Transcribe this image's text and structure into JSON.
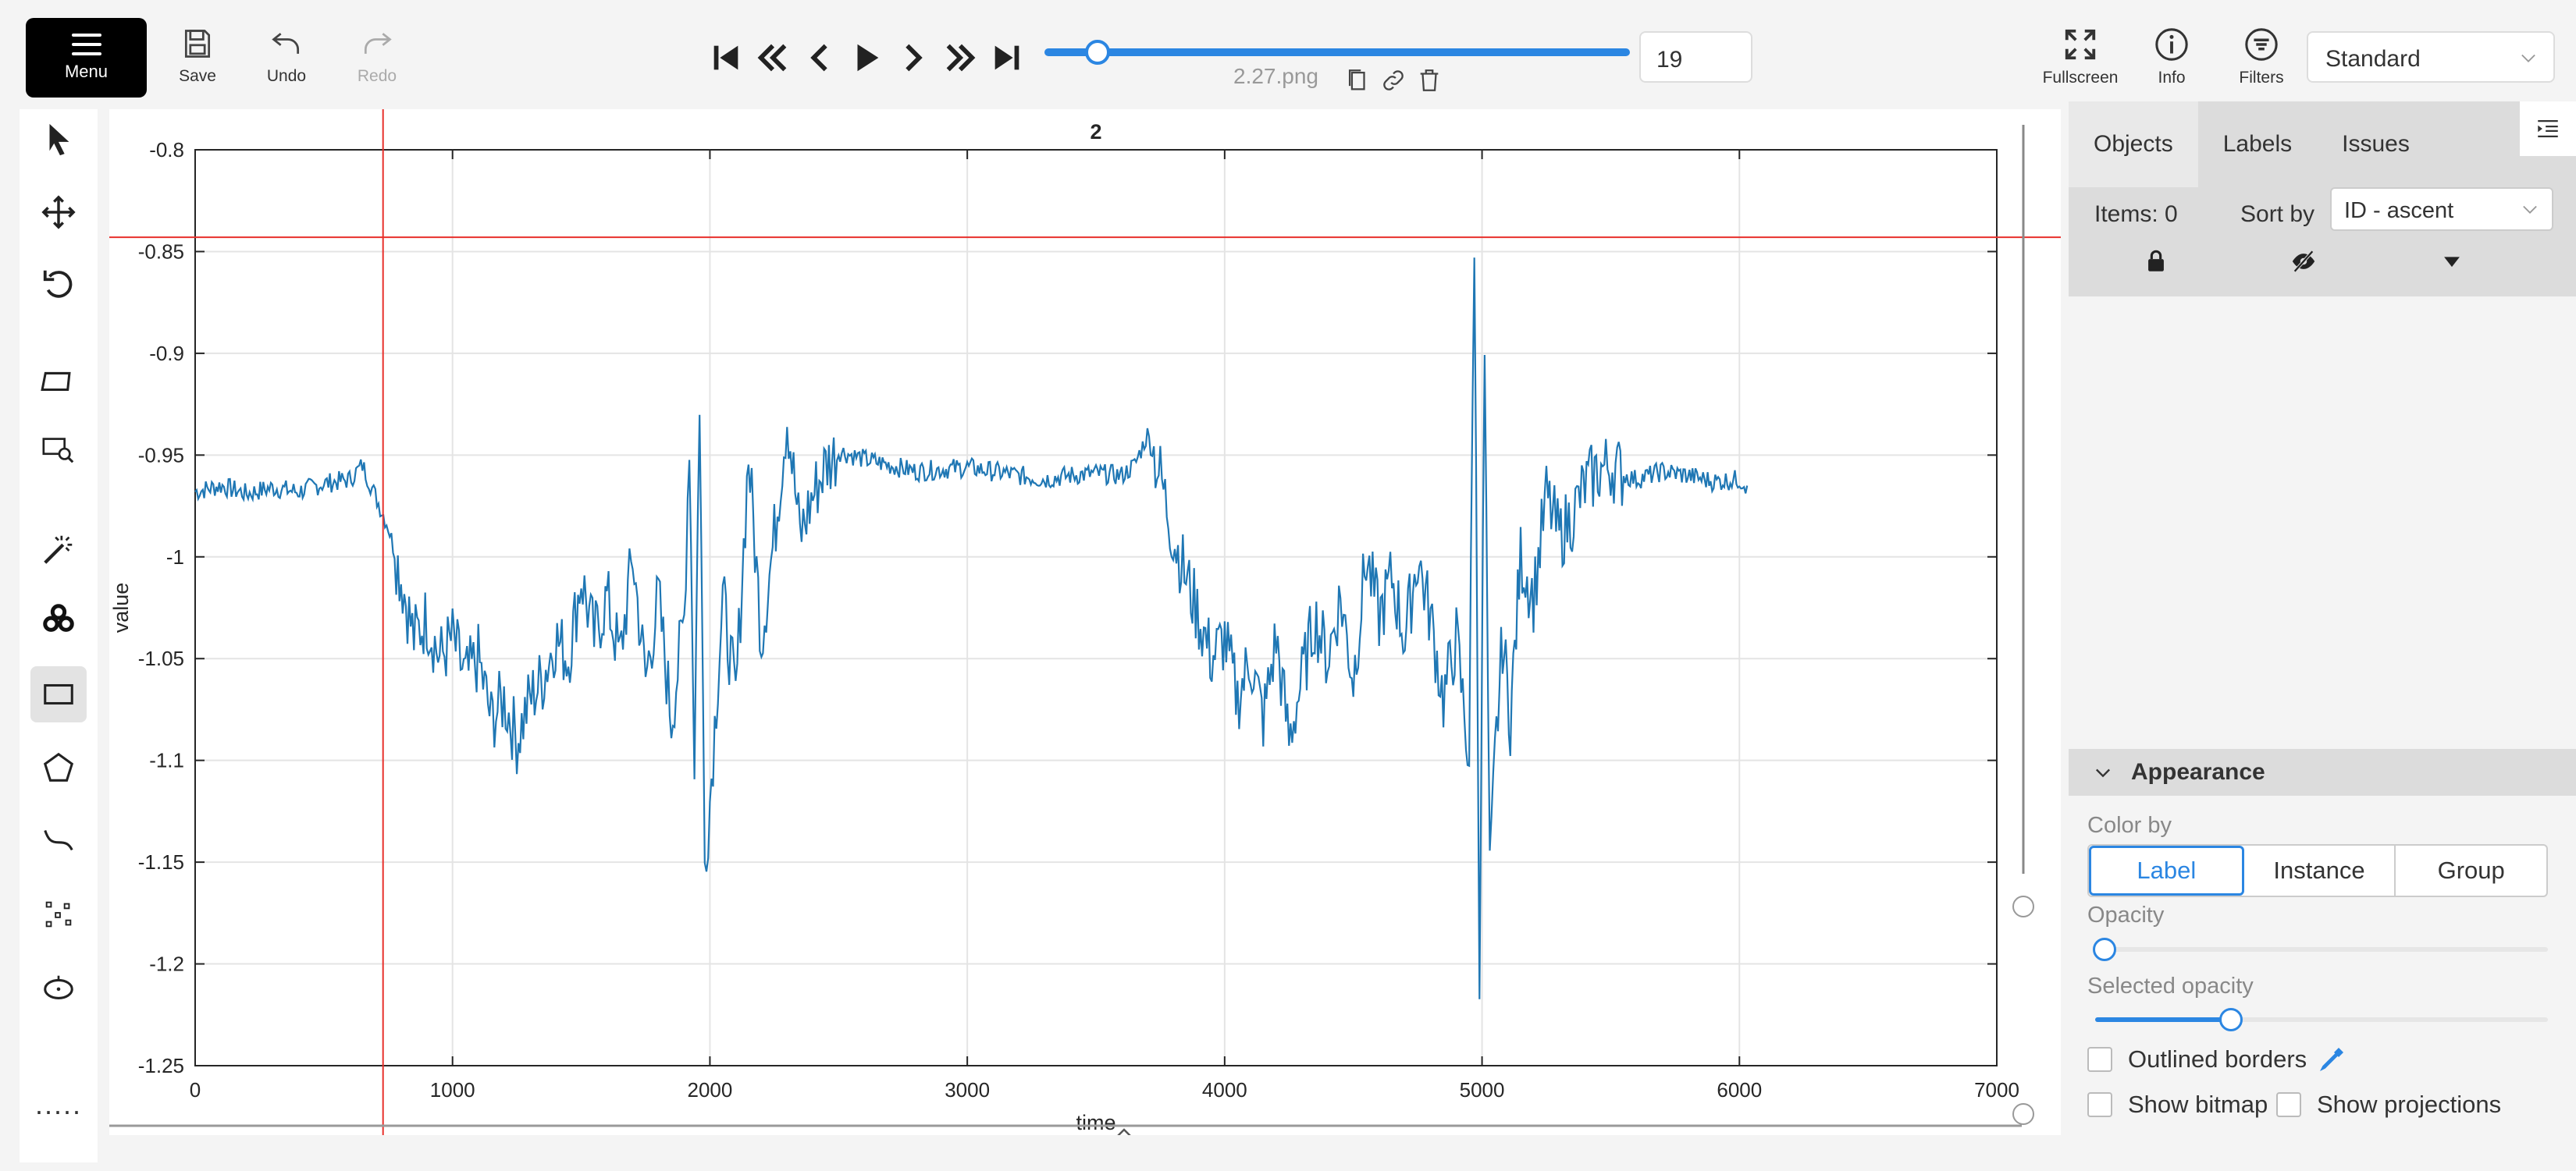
{
  "topbar": {
    "menu_label": "Menu",
    "save_label": "Save",
    "undo_label": "Undo",
    "redo_label": "Redo",
    "player_icons": [
      "first-frame-icon",
      "fast-backward-icon",
      "previous-frame-icon",
      "play-icon",
      "next-frame-icon",
      "fast-forward-icon",
      "last-frame-icon"
    ],
    "filename": "2.27.png",
    "frame_number": "19",
    "frame_progress": 0.09,
    "fullscreen_label": "Fullscreen",
    "info_label": "Info",
    "filters_label": "Filters",
    "workspace": "Standard"
  },
  "left_tools": [
    "cursor-icon",
    "move-icon",
    "rotate-icon",
    "fit-image-icon",
    "zoom-region-icon",
    "magic-wand-icon",
    "openvino-icon",
    "rectangle-icon",
    "polygon-icon",
    "polyline-icon",
    "points-icon",
    "ellipse-icon",
    "more-tools-icon"
  ],
  "active_tool": "rectangle-icon",
  "sidebar": {
    "tabs": [
      "Objects",
      "Labels",
      "Issues"
    ],
    "active_tab": "Objects",
    "items_count": "Items: 0",
    "sort_by_label": "Sort by",
    "sort_value": "ID - ascent",
    "appearance_title": "Appearance",
    "color_by_label": "Color by",
    "color_by_options": [
      "Label",
      "Instance",
      "Group"
    ],
    "color_by_selected": "Label",
    "opacity_label": "Opacity",
    "opacity_value": 0.02,
    "selected_opacity_label": "Selected opacity",
    "selected_opacity_value": 0.3,
    "outlined_borders_label": "Outlined borders",
    "show_bitmap_label": "Show bitmap",
    "show_projections_label": "Show projections"
  },
  "chart_data": {
    "type": "line",
    "title": "2",
    "xlabel": "time",
    "ylabel": "value",
    "xlim": [
      0,
      7000
    ],
    "ylim": [
      -1.25,
      -0.8
    ],
    "xticks": [
      "0",
      "1000",
      "2000",
      "3000",
      "4000",
      "5000",
      "6000",
      "7000"
    ],
    "yticks": [
      "-0.8",
      "-0.85",
      "-0.9",
      "-0.95",
      "-1",
      "-1.05",
      "-1.1",
      "-1.15",
      "-1.2",
      "-1.25"
    ],
    "grid": true,
    "color": "#1f77b4",
    "crosshair": {
      "x": 730,
      "y": -0.843
    },
    "series": [
      {
        "x": [
          0,
          100,
          200,
          300,
          400,
          500,
          600,
          650,
          700,
          750,
          800,
          850,
          900,
          950,
          1000,
          1050,
          1100,
          1150,
          1200,
          1250,
          1300,
          1350,
          1400,
          1450,
          1500,
          1550,
          1600,
          1650,
          1700,
          1750,
          1800,
          1850,
          1900,
          1920,
          1940,
          1960,
          1980,
          2000,
          2050,
          2100,
          2150,
          2200,
          2250,
          2300,
          2350,
          2400,
          2450,
          2500,
          2550,
          2600,
          2700,
          2800,
          2900,
          3000,
          3100,
          3200,
          3300,
          3400,
          3500,
          3600,
          3650,
          3700,
          3750,
          3800,
          3850,
          3900,
          3950,
          4000,
          4050,
          4100,
          4150,
          4200,
          4250,
          4300,
          4350,
          4400,
          4450,
          4500,
          4550,
          4600,
          4650,
          4700,
          4750,
          4800,
          4850,
          4900,
          4950,
          4970,
          4990,
          5010,
          5030,
          5050,
          5080,
          5110,
          5150,
          5200,
          5250,
          5300,
          5350,
          5400,
          5450,
          5500,
          5550,
          5600,
          5700,
          5800,
          5900,
          6000,
          6030
        ],
        "y": [
          -0.968,
          -0.965,
          -0.969,
          -0.966,
          -0.968,
          -0.964,
          -0.962,
          -0.955,
          -0.97,
          -0.985,
          -1.01,
          -1.04,
          -1.03,
          -1.05,
          -1.04,
          -1.06,
          -1.05,
          -1.08,
          -1.07,
          -1.09,
          -1.07,
          -1.06,
          -1.04,
          -1.05,
          -1.01,
          -1.04,
          -1.02,
          -1.05,
          -1.0,
          -1.06,
          -1.02,
          -1.08,
          -1.03,
          -0.94,
          -1.1,
          -0.92,
          -1.15,
          -1.12,
          -1.02,
          -1.07,
          -0.95,
          -1.04,
          -0.99,
          -0.93,
          -0.99,
          -0.97,
          -0.955,
          -0.948,
          -0.95,
          -0.952,
          -0.955,
          -0.958,
          -0.957,
          -0.956,
          -0.958,
          -0.96,
          -0.962,
          -0.96,
          -0.959,
          -0.96,
          -0.955,
          -0.94,
          -0.96,
          -0.99,
          -1.01,
          -1.03,
          -1.05,
          -1.04,
          -1.07,
          -1.05,
          -1.08,
          -1.04,
          -1.09,
          -1.06,
          -1.03,
          -1.05,
          -1.02,
          -1.06,
          -1.0,
          -1.03,
          -1.01,
          -1.04,
          -1.0,
          -1.03,
          -1.07,
          -1.04,
          -1.1,
          -0.84,
          -1.2,
          -0.9,
          -1.16,
          -1.1,
          -1.04,
          -1.08,
          -1.0,
          -1.02,
          -0.97,
          -0.99,
          -0.98,
          -0.965,
          -0.958,
          -0.955,
          -0.96,
          -0.962,
          -0.958,
          -0.96,
          -0.963,
          -0.962,
          -0.965
        ]
      }
    ]
  }
}
